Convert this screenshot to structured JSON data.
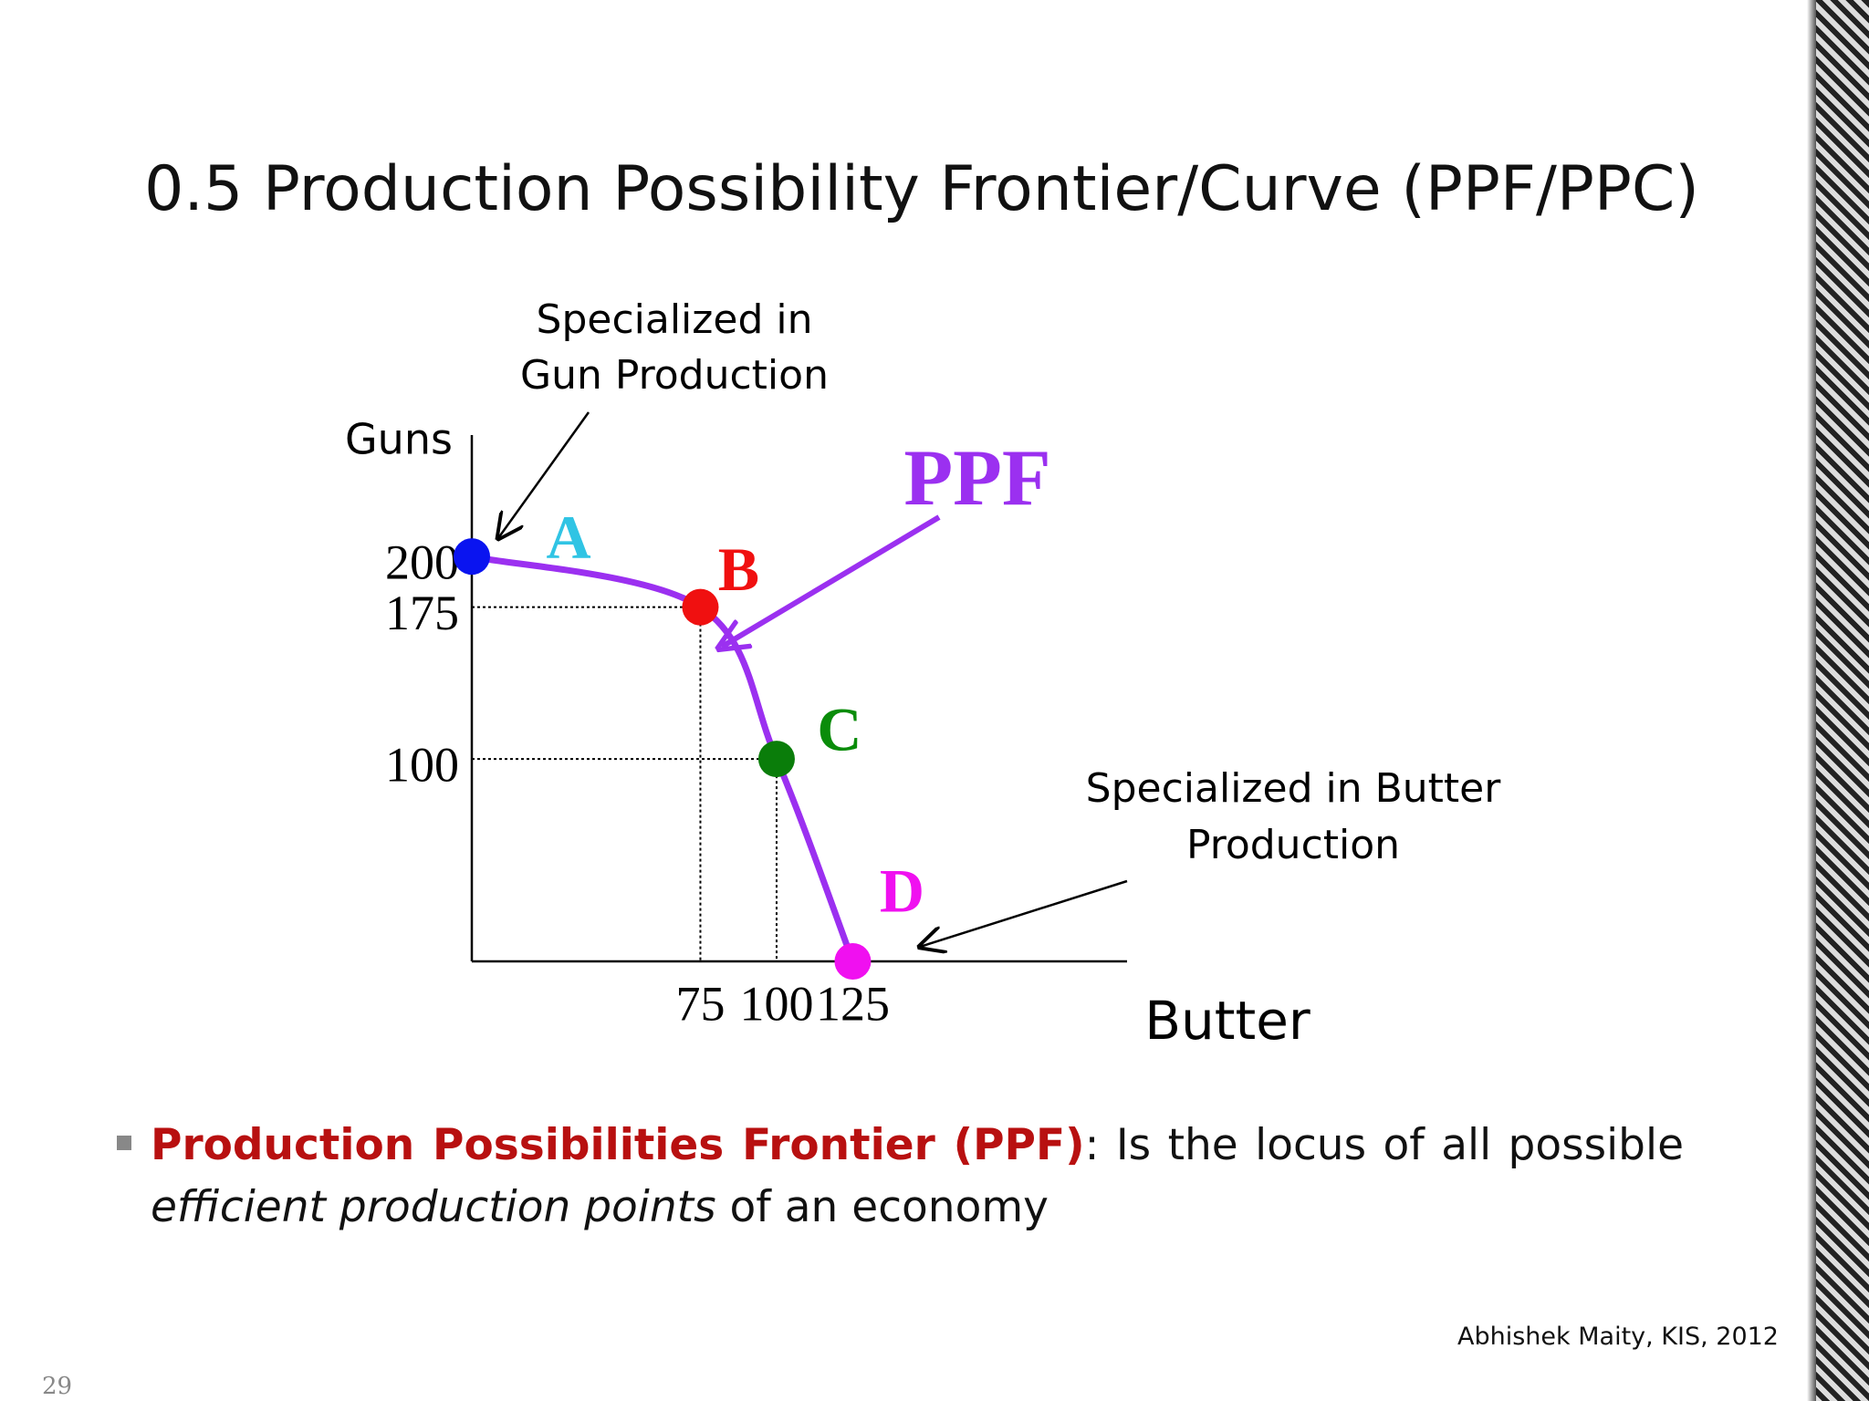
{
  "slide": {
    "title": "0.5 Production Possibility Frontier/Curve (PPF/PPC)",
    "bullet": {
      "term": "Production Possibilities Frontier (PPF)",
      "text1": ": Is the locus of all possible",
      "emphasis": "efficient production points",
      "text2": "of an economy"
    },
    "footer": "Abhishek Maity, KIS, 2012",
    "page_number": "29"
  },
  "chart_data": {
    "type": "line",
    "x_label": "Butter",
    "y_label": "Guns",
    "x": [
      0,
      75,
      100,
      125
    ],
    "series": [
      {
        "name": "PPF",
        "color": "#9b30f0",
        "values": [
          200,
          175,
          100,
          0
        ]
      }
    ],
    "point_labels": [
      "A",
      "B",
      "C",
      "D"
    ],
    "point_colors": [
      "#0a14f0",
      "#f01010",
      "#0a7d0a",
      "#f010f0"
    ],
    "label_colors": [
      "#30c4e4",
      "#f01010",
      "#0a8c0a",
      "#f010f0"
    ],
    "xlim": [
      0,
      215
    ],
    "ylim": [
      0,
      260
    ],
    "xticks": [
      75,
      100,
      125
    ],
    "yticks": [
      100,
      175,
      200
    ],
    "annotations": {
      "gun": [
        "Specialized in",
        "Gun Production"
      ],
      "butter": [
        "Specialized in Butter",
        "Production"
      ]
    }
  }
}
